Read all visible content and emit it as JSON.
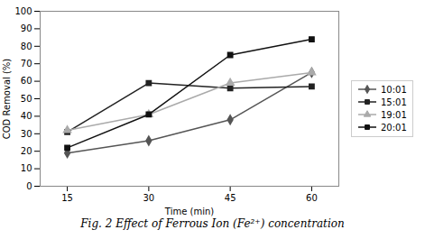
{
  "chart_data": {
    "type": "line",
    "title": "Fig. 2 Effect of Ferrous Ion (Fe²⁺) concentration",
    "xlabel": "Time (min)",
    "ylabel": "COD Removal (%)",
    "x": [
      15,
      30,
      45,
      60
    ],
    "series": [
      {
        "name": "10:01",
        "color": "#555555",
        "marker": "diamond",
        "line_style": "solid",
        "values": [
          19,
          26,
          38,
          65
        ]
      },
      {
        "name": "15:01",
        "color": "#222222",
        "marker": "square",
        "line_style": "solid",
        "values": [
          31,
          59,
          56,
          57
        ]
      },
      {
        "name": "19:01",
        "color": "#aaaaaa",
        "marker": "triangle",
        "line_style": "solid",
        "values": [
          32,
          41,
          59,
          65
        ]
      },
      {
        "name": "20:01",
        "color": "#111111",
        "marker": "square",
        "line_style": "solid",
        "values": [
          22,
          41,
          75,
          84
        ]
      }
    ],
    "xlim": [
      10,
      65
    ],
    "xticks": [
      15,
      30,
      45,
      60
    ],
    "ylim": [
      0,
      100
    ],
    "yticks": [
      0,
      10,
      20,
      30,
      40,
      50,
      60,
      70,
      80,
      90,
      100
    ],
    "grid": false,
    "legend": "right"
  }
}
